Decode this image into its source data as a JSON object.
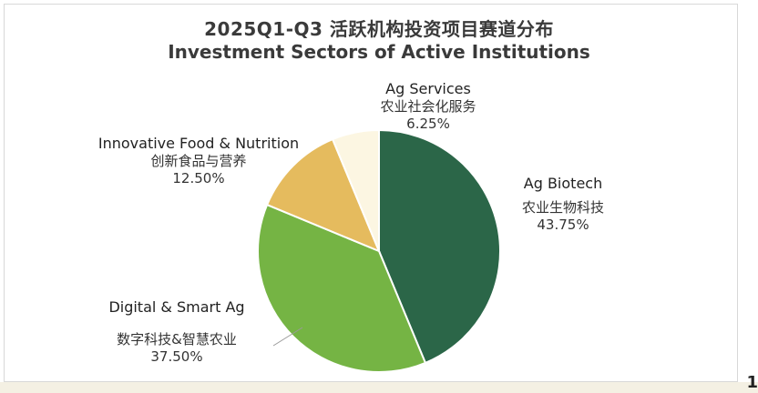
{
  "chart_data": {
    "type": "pie",
    "title": "2025Q1-Q3 活跃机构投资项目赛道分布",
    "subtitle": "Investment Sectors of Active Institutions",
    "slices": [
      {
        "label_en": "Ag Biotech",
        "label_cn": "农业生物科技",
        "value": 43.75,
        "display": "43.75%",
        "color": "#2b6648"
      },
      {
        "label_en": "Digital & Smart Ag",
        "label_cn": "数字科技&智慧农业",
        "value": 37.5,
        "display": "37.50%",
        "color": "#75b444"
      },
      {
        "label_en": "Innovative Food & Nutrition",
        "label_cn": "创新食品与营养",
        "value": 12.5,
        "display": "12.50%",
        "color": "#e5bb5e"
      },
      {
        "label_en": "Ag Services",
        "label_cn": "农业社会化服务",
        "value": 6.25,
        "display": "6.25%",
        "color": "#fcf6e2"
      }
    ]
  },
  "page_number": "1"
}
